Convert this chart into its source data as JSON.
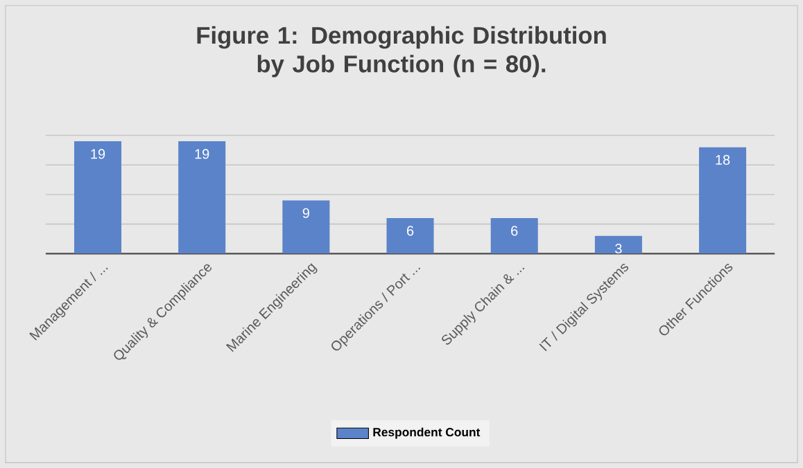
{
  "chart_data": {
    "type": "bar",
    "title": "Figure 1: Demographic Distribution by Job Function (n = 80).",
    "categories": [
      "Management / ...",
      "Quality & Compliance",
      "Marine Engineering",
      "Operations / Port ...",
      "Supply Chain & ...",
      "IT / Digital Systems",
      "Other Functions"
    ],
    "series": [
      {
        "name": "Respondent Count",
        "color": "#5b83c9",
        "values": [
          19,
          19,
          9,
          6,
          6,
          3,
          18
        ]
      }
    ],
    "ylim": [
      0,
      20
    ],
    "tick_labels": "x",
    "grid": "y",
    "legend": "bottom",
    "data_labels": true
  }
}
